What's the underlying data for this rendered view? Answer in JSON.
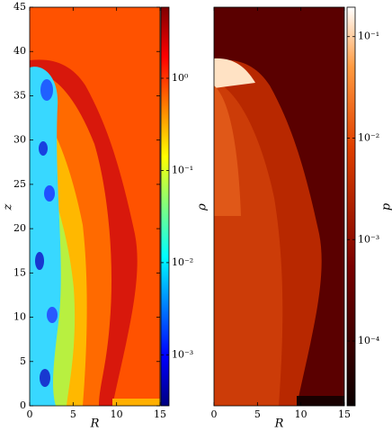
{
  "chart_data": [
    {
      "type": "heatmap",
      "xlabel": "R",
      "ylabel": "z",
      "colorbar_label": "ρ",
      "colormap": "jet",
      "colorbar_log": true,
      "xlim": [
        0,
        15
      ],
      "ylim": [
        0,
        45
      ],
      "xticks": [
        0,
        5,
        10,
        15
      ],
      "yticks": [
        0,
        5,
        10,
        15,
        20,
        25,
        30,
        35,
        40,
        45
      ],
      "clim": [
        0.00028,
        5.9
      ],
      "cticks": [
        {
          "value": 1,
          "label": "10⁰"
        },
        {
          "value": 0.1,
          "label": "10⁻¹"
        },
        {
          "value": 0.01,
          "label": "10⁻²"
        },
        {
          "value": 0.001,
          "label": "10⁻³"
        }
      ]
    },
    {
      "type": "heatmap",
      "xlabel": "R",
      "colorbar_label": "p",
      "colormap": "hot",
      "colorbar_log": true,
      "xlim": [
        0,
        15
      ],
      "ylim": [
        0,
        45
      ],
      "xticks": [
        0,
        5,
        10,
        15
      ],
      "clim": [
        2.3e-05,
        0.195
      ],
      "cticks": [
        {
          "value": 0.1,
          "label": "10⁻¹"
        },
        {
          "value": 0.01,
          "label": "10⁻²"
        },
        {
          "value": 0.001,
          "label": "10⁻³"
        },
        {
          "value": 0.0001,
          "label": "10⁻⁴"
        }
      ]
    }
  ]
}
